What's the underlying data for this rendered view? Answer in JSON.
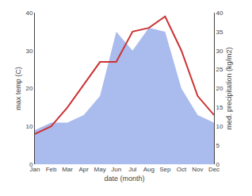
{
  "chart_data": {
    "type": "line",
    "categories": [
      "Jan",
      "Feb",
      "Mar",
      "Apr",
      "May",
      "Jun",
      "Jul",
      "Aug",
      "Sep",
      "Oct",
      "Nov",
      "Dec"
    ],
    "xlabel": "date (month)",
    "ylabel": "max temp (C)",
    "y2label": "med. precipitation (kg/m2)",
    "series": [
      {
        "type": "area",
        "axis": "y2",
        "color": "#aabbee",
        "values": [
          9,
          11,
          11,
          13,
          18,
          35,
          30,
          36,
          35,
          20,
          13,
          11
        ]
      },
      {
        "type": "line",
        "color": "#cc3333",
        "values": [
          8,
          10,
          15,
          21,
          27,
          27,
          35,
          36,
          39,
          30,
          18,
          13
        ]
      }
    ],
    "ylim": [
      0,
      40
    ],
    "yticks": [
      0,
      10,
      20,
      30,
      40
    ],
    "y2lim": [
      0,
      40
    ],
    "y2ticks": [
      0,
      5,
      10,
      15,
      20,
      25,
      30,
      35,
      40
    ],
    "grid": false
  }
}
